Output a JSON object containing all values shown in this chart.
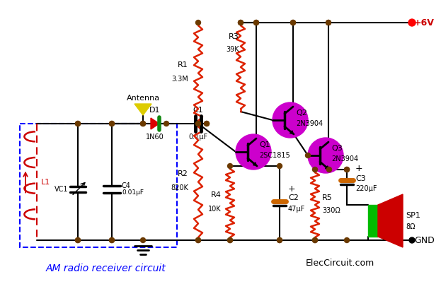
{
  "title": "AM radio receiver circuit",
  "subtitle": "ElecCircuit.com",
  "bg_color": "#ffffff",
  "wire_color": "#000000",
  "node_color": "#6b3a00",
  "resistor_color": "#cc2200",
  "supply_label": "+6V",
  "gnd_label": "GND",
  "components": {
    "L1": {
      "label": "L1",
      "color": "#cc0000"
    },
    "VC1": {
      "label": "VC1"
    },
    "C4": {
      "label": "C4",
      "value": "0.01μF"
    },
    "D1": {
      "label": "D1",
      "value": "1N60"
    },
    "R1": {
      "label": "R1",
      "value": "3.3M"
    },
    "R2": {
      "label": "R2",
      "value": "820K"
    },
    "C1": {
      "label": "C1",
      "value": "0.1μF"
    },
    "R3": {
      "label": "R3",
      "value": "39K"
    },
    "R4": {
      "label": "R4",
      "value": "10K"
    },
    "C2": {
      "label": "C2",
      "value": "47μF"
    },
    "R5": {
      "label": "R5",
      "value": "330Ω"
    },
    "C3": {
      "label": "C3",
      "value": "220μF"
    },
    "Q1": {
      "label": "Q1",
      "value": "2SC1815",
      "color": "#cc00cc"
    },
    "Q2": {
      "label": "Q2",
      "value": "2N3904",
      "color": "#cc00cc"
    },
    "Q3": {
      "label": "Q3",
      "value": "2N3904",
      "color": "#cc00cc"
    },
    "SP1": {
      "label": "SP1",
      "value": "8Ω"
    }
  }
}
